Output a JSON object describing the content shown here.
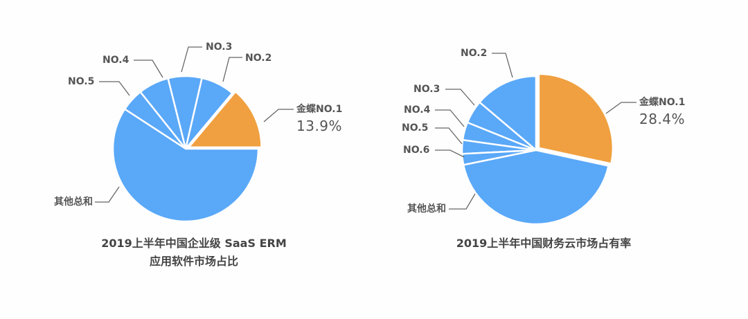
{
  "colors": {
    "primary": "#F0A040",
    "secondary": "#5AA8F8",
    "leader": "#666666",
    "text": "#555555"
  },
  "chart_data": [
    {
      "type": "pie",
      "title": "2019上半年中国企业级 SaaS ERM 应用软件市场占比",
      "title_lines": [
        "2019上半年中国企业级 SaaS ERM",
        "应用软件市场占比"
      ],
      "start_angle_deg": 0,
      "direction": "counterclockwise",
      "slices": [
        {
          "label": "金蝶NO.1",
          "value": 13.9,
          "value_label": "13.9%",
          "color": "#F0A040",
          "exploded": true
        },
        {
          "label": "NO.2",
          "value": 7.5,
          "color": "#5AA8F8"
        },
        {
          "label": "NO.3",
          "value": 7.5,
          "color": "#5AA8F8"
        },
        {
          "label": "NO.4",
          "value": 6.8,
          "color": "#5AA8F8"
        },
        {
          "label": "NO.5",
          "value": 5.1,
          "color": "#5AA8F8"
        },
        {
          "label": "其他总和",
          "value": 59.2,
          "color": "#5AA8F8"
        }
      ]
    },
    {
      "type": "pie",
      "title": "2019上半年中国财务云市场占有率",
      "title_lines": [
        "2019上半年中国财务云市场占有率"
      ],
      "start_angle_deg": 90,
      "direction": "clockwise_for_first_then_ccw_rest",
      "slices": [
        {
          "label": "金蝶NO.1",
          "value": 28.4,
          "value_label": "28.4%",
          "color": "#F0A040",
          "exploded": true
        },
        {
          "label": "NO.2",
          "value": 13.8,
          "color": "#5AA8F8"
        },
        {
          "label": "NO.3",
          "value": 5.1,
          "color": "#5AA8F8"
        },
        {
          "label": "NO.4",
          "value": 3.9,
          "color": "#5AA8F8"
        },
        {
          "label": "NO.5",
          "value": 3.0,
          "color": "#5AA8F8"
        },
        {
          "label": "NO.6",
          "value": 2.4,
          "color": "#5AA8F8"
        },
        {
          "label": "其他总和",
          "value": 43.4,
          "color": "#5AA8F8"
        }
      ]
    }
  ],
  "left": {
    "labels": {
      "no1": "金蝶NO.1",
      "no1_value": "13.9%",
      "no2": "NO.2",
      "no3": "NO.3",
      "no4": "NO.4",
      "no5": "NO.5",
      "other": "其他总和"
    },
    "title_line1": "2019上半年中国企业级 SaaS ERM",
    "title_line2": "应用软件市场占比"
  },
  "right": {
    "labels": {
      "no1": "金蝶NO.1",
      "no1_value": "28.4%",
      "no2": "NO.2",
      "no3": "NO.3",
      "no4": "NO.4",
      "no5": "NO.5",
      "no6": "NO.6",
      "other": "其他总和"
    },
    "title": "2019上半年中国财务云市场占有率"
  }
}
